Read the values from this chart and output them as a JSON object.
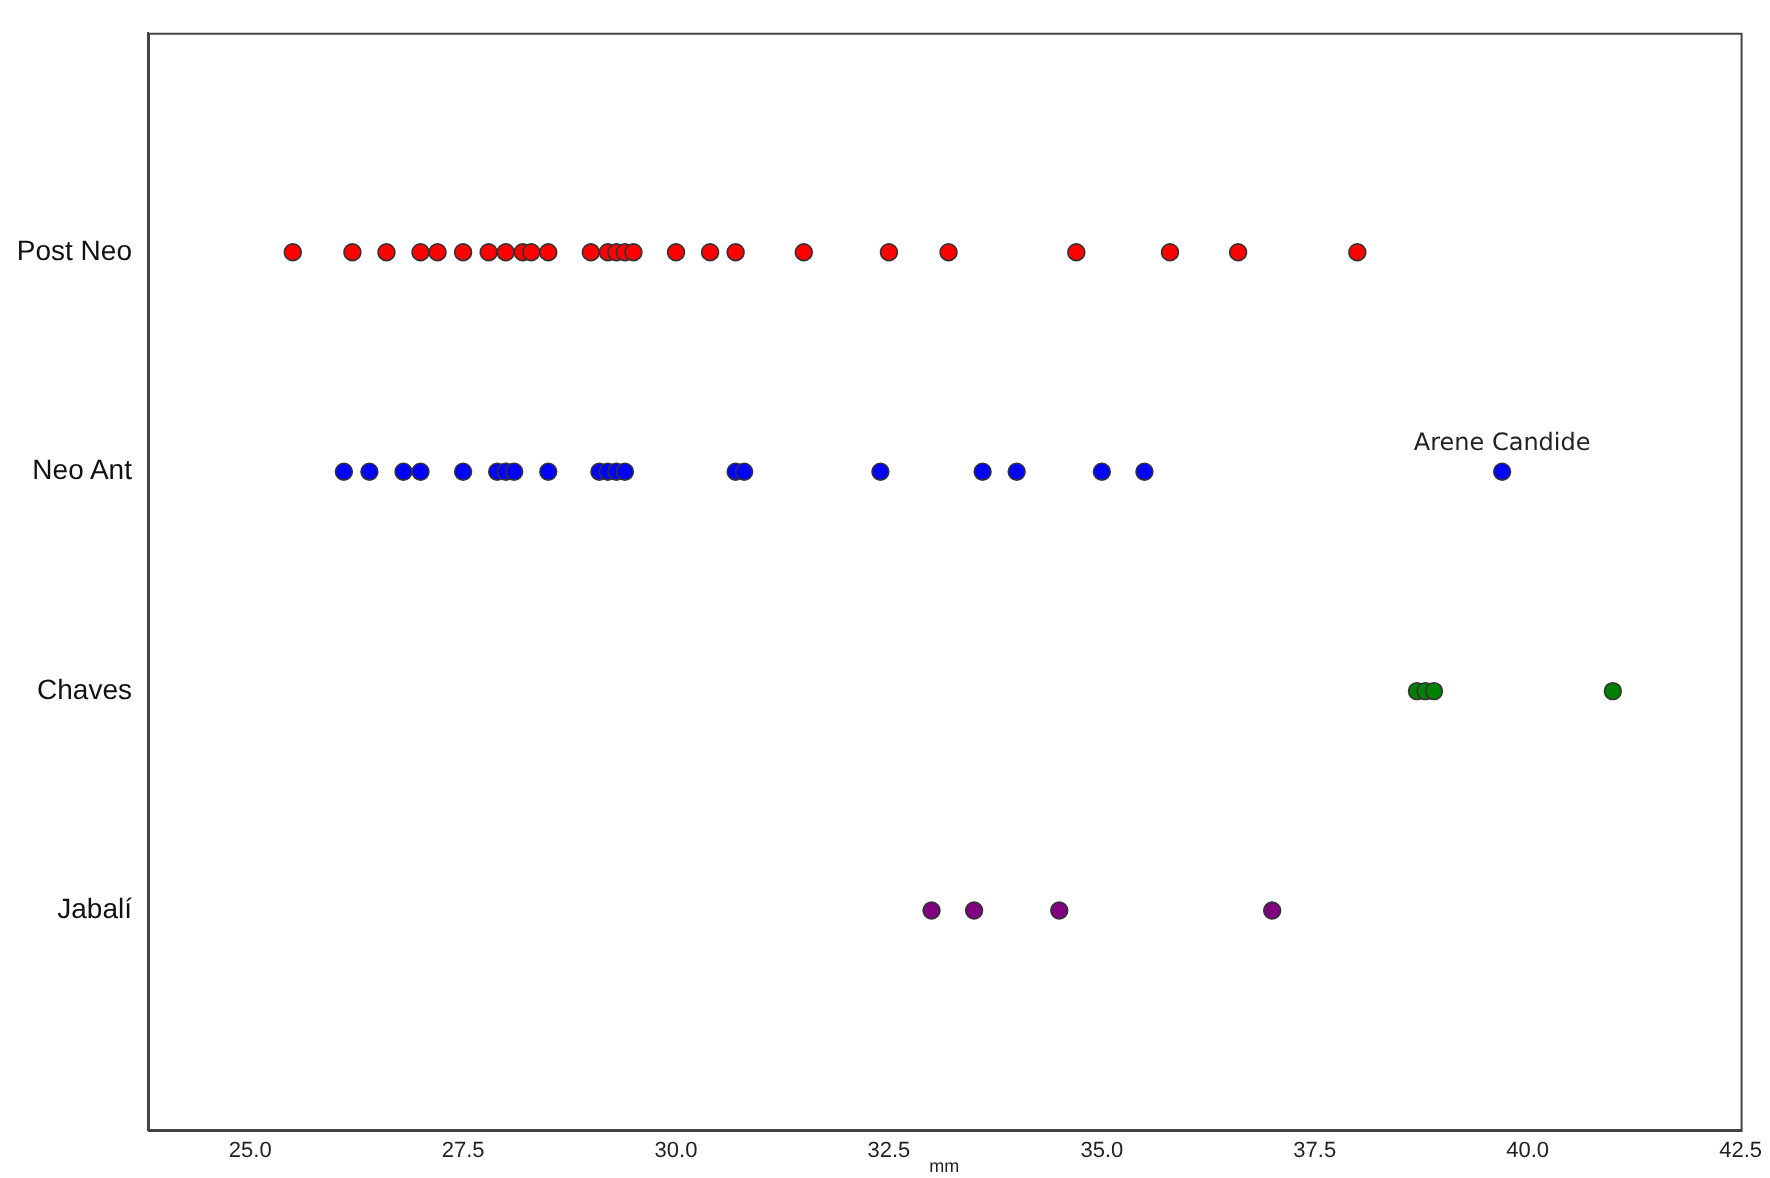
{
  "chart_data": {
    "type": "scatter",
    "orientation": "horizontal",
    "xlabel": "mm",
    "categories": [
      "Post Neo",
      "Neo Ant",
      "Chaves",
      "Jabalí"
    ],
    "xlim": [
      23.8,
      42.5
    ],
    "xticks": [
      {
        "value": 25,
        "label": "25.0"
      },
      {
        "value": 27.5,
        "label": "27.5"
      },
      {
        "value": 30,
        "label": "30.0"
      },
      {
        "value": 32.5,
        "label": "32.5"
      },
      {
        "value": 35,
        "label": "35.0"
      },
      {
        "value": 37.5,
        "label": "37.5"
      },
      {
        "value": 40,
        "label": "40.0"
      },
      {
        "value": 42.5,
        "label": "42.5"
      }
    ],
    "grid": false,
    "legend": false,
    "marker": "circle",
    "series": [
      {
        "color": "#ff0000",
        "x": [
          "Post Neo",
          "Post Neo",
          "Post Neo",
          "Post Neo",
          "Post Neo",
          "Post Neo",
          "Post Neo",
          "Post Neo",
          "Post Neo",
          "Post Neo",
          "Post Neo",
          "Post Neo",
          "Post Neo",
          "Post Neo",
          "Post Neo",
          "Post Neo",
          "Post Neo",
          "Post Neo",
          "Post Neo",
          "Post Neo",
          "Post Neo",
          "Post Neo",
          "Post Neo",
          "Post Neo",
          "Post Neo",
          "Post Neo"
        ],
        "values": [
          25.5,
          26.2,
          26.6,
          27.0,
          27.2,
          27.5,
          27.8,
          28.0,
          28.2,
          28.3,
          28.5,
          29.0,
          29.2,
          29.3,
          29.4,
          29.5,
          30.0,
          30.4,
          30.7,
          31.5,
          32.5,
          33.2,
          34.7,
          35.8,
          36.6,
          38.0
        ]
      },
      {
        "color": "#0000ff",
        "x": [
          "Neo Ant",
          "Neo Ant",
          "Neo Ant",
          "Neo Ant",
          "Neo Ant",
          "Neo Ant",
          "Neo Ant",
          "Neo Ant",
          "Neo Ant",
          "Neo Ant",
          "Neo Ant",
          "Neo Ant",
          "Neo Ant",
          "Neo Ant",
          "Neo Ant",
          "Neo Ant",
          "Neo Ant",
          "Neo Ant",
          "Neo Ant",
          "Neo Ant",
          "Neo Ant"
        ],
        "values": [
          26.1,
          26.4,
          26.8,
          27.0,
          27.5,
          27.9,
          28.0,
          28.1,
          28.5,
          29.1,
          29.2,
          29.3,
          29.4,
          30.7,
          30.8,
          32.4,
          33.6,
          34.0,
          35.0,
          35.5,
          39.7
        ]
      },
      {
        "color": "#008000",
        "x": [
          "Chaves",
          "Chaves",
          "Chaves",
          "Chaves"
        ],
        "values": [
          38.7,
          38.8,
          38.9,
          41.0
        ]
      },
      {
        "color": "#800080",
        "x": [
          "Jabalí",
          "Jabalí",
          "Jabalí",
          "Jabalí"
        ],
        "values": [
          33.0,
          33.5,
          34.5,
          37.0
        ]
      }
    ],
    "annotations": [
      {
        "text": "Arene Candide",
        "x": 39.7,
        "y": "Neo Ant"
      }
    ]
  }
}
